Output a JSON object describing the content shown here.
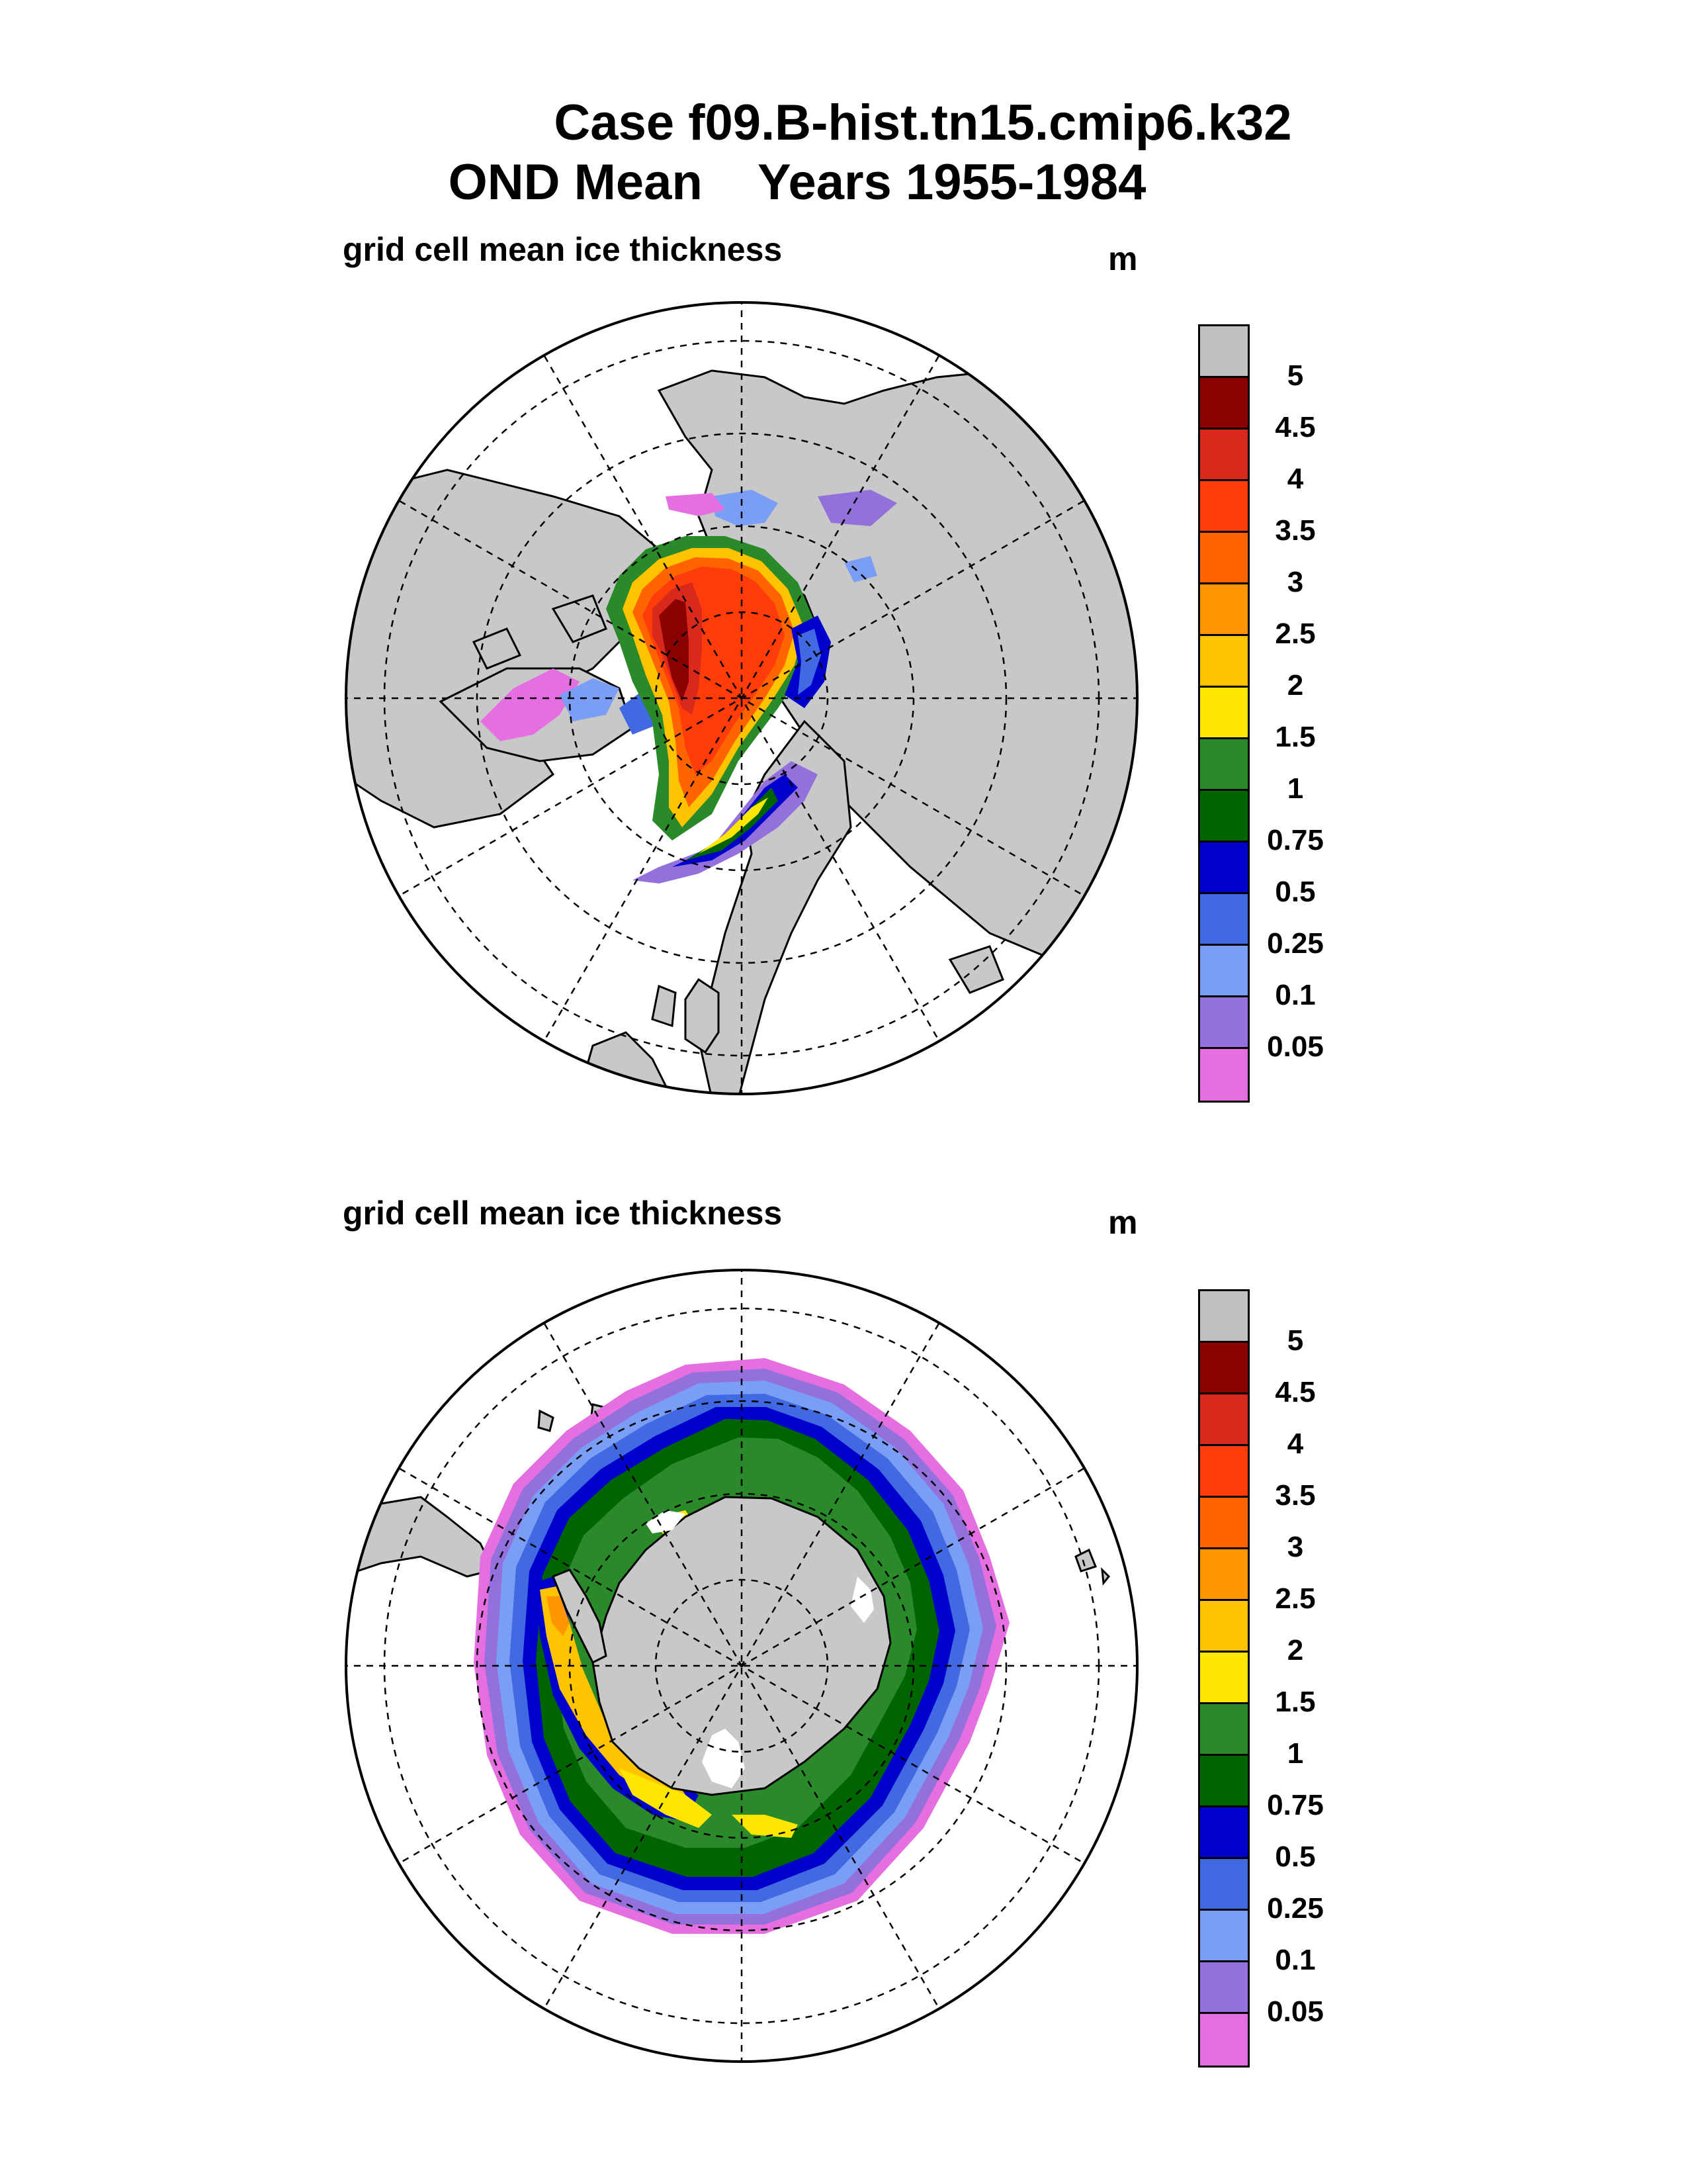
{
  "title": {
    "line1": "Case f09.B-hist.tn15.cmip6.k32",
    "line2": "OND Mean    Years 1955-1984"
  },
  "panels": [
    {
      "id": "north",
      "subtitle": "grid cell mean ice thickness",
      "units": "m",
      "hemisphere": "Arctic"
    },
    {
      "id": "south",
      "subtitle": "grid cell mean ice thickness",
      "units": "m",
      "hemisphere": "Antarctic"
    }
  ],
  "legend": {
    "labels": [
      "5",
      "4.5",
      "4",
      "3.5",
      "3",
      "2.5",
      "2",
      "1.5",
      "1",
      "0.75",
      "0.5",
      "0.25",
      "0.1",
      "0.05"
    ],
    "colors": [
      "#c0c0c0",
      "#8b0000",
      "#d9291c",
      "#ff3c0a",
      "#ff6400",
      "#ff9600",
      "#ffc300",
      "#ffe600",
      "#2a8a2a",
      "#006400",
      "#0000cd",
      "#4169e1",
      "#7a9ef5",
      "#9370db",
      "#e56fe0"
    ]
  },
  "colors": {
    "land": "#c8c8c8",
    "ocean": "#ffffff",
    "grid": "#000000"
  }
}
